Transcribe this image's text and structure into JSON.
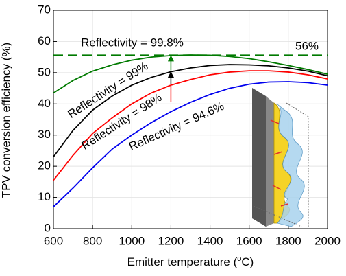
{
  "chart_data": {
    "type": "line",
    "x_label": [
      "Emitter temperature (",
      "o",
      "C)"
    ],
    "y_label": "TPV conversion efficiency (%)",
    "x": [
      600,
      700,
      800,
      900,
      1000,
      1100,
      1200,
      1300,
      1400,
      1500,
      1600,
      1700,
      1800,
      1900,
      2000
    ],
    "series": [
      {
        "name": "Reflectivity = 99.8%",
        "color": "#007a00",
        "values": [
          43.5,
          47.5,
          50.5,
          52.5,
          54,
          55,
          55.5,
          55.7,
          55.6,
          55.2,
          54.5,
          53.5,
          52.3,
          51,
          49.5
        ]
      },
      {
        "name": "Reflectivity = 99%",
        "color": "#000000",
        "values": [
          23,
          31.5,
          38,
          42.5,
          46,
          48.5,
          50.3,
          51.5,
          52.3,
          52.6,
          52.5,
          52.2,
          51.5,
          50.5,
          49
        ]
      },
      {
        "name": "Reflectivity = 98%",
        "color": "#ff0000",
        "values": [
          15.5,
          23.5,
          30.5,
          35.5,
          40,
          43.5,
          46,
          47.8,
          49.3,
          50.2,
          50.6,
          50.6,
          50.2,
          49.3,
          48
        ]
      },
      {
        "name": "Reflectivity = 94.6%",
        "color": "#0000ee",
        "values": [
          7,
          13,
          19.5,
          25.5,
          30,
          34,
          37.5,
          40.5,
          43,
          45,
          46.3,
          47,
          47.1,
          46.8,
          46
        ]
      }
    ],
    "reference_line": {
      "value": 55.6,
      "label": "56%",
      "color": "#007a00"
    },
    "xlim": [
      600,
      2000
    ],
    "xticks": [
      600,
      800,
      1000,
      1200,
      1400,
      1600,
      1800,
      2000
    ],
    "ylim": [
      0,
      70
    ],
    "yticks": [
      0,
      10,
      20,
      30,
      40,
      50,
      60,
      70
    ],
    "grid": true
  }
}
